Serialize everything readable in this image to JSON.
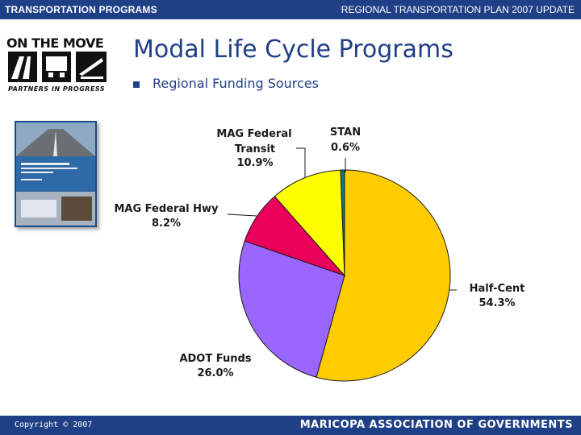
{
  "header": {
    "left_label": "TRANSPORTATION PROGRAMS",
    "right_label": "REGIONAL TRANSPORTATION PLAN 2007 UPDATE"
  },
  "logo": {
    "line1": "ON THE MOVE",
    "line3": "PARTNERS IN PROGRESS"
  },
  "page": {
    "title": "Modal Life Cycle Programs",
    "bullet": "Regional Funding Sources"
  },
  "footer": {
    "copyright": "Copyright © 2007",
    "org": "MARICOPA ASSOCIATION OF GOVERNMENTS"
  },
  "chart_data": {
    "type": "pie",
    "title": "Regional Funding Sources",
    "slices": [
      {
        "name": "Half-Cent",
        "value": 54.3,
        "label_pct": "54.3%",
        "color": "#FFCC00"
      },
      {
        "name": "ADOT Funds",
        "value": 26.0,
        "label_pct": "26.0%",
        "color": "#9966FF"
      },
      {
        "name": "MAG Federal Hwy",
        "value": 8.2,
        "label_pct": "8.2%",
        "color": "#E8005A"
      },
      {
        "name": "MAG Federal Transit",
        "value": 10.9,
        "label_pct": "10.9%",
        "color": "#FFFF00"
      },
      {
        "name": "STAN",
        "value": 0.6,
        "label_pct": "0.6%",
        "color": "#008080"
      }
    ],
    "start_angle": "top, clockwise"
  }
}
